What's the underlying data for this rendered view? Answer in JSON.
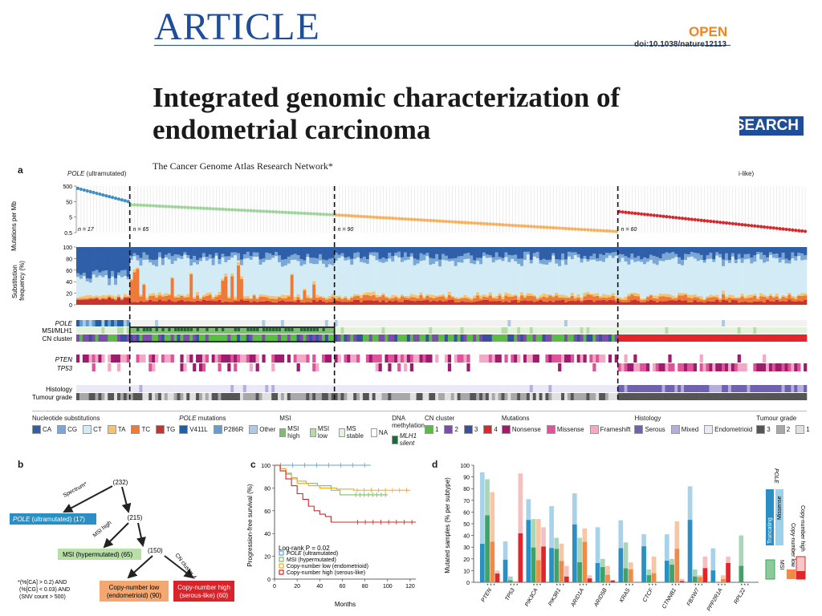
{
  "header": {
    "masthead": "ARTICLE",
    "open_label": "OPEN",
    "doi": "doi:10.1038/nature12113",
    "title_line1": "Integrated genomic characterization of",
    "title_line2": "endometrial carcinoma",
    "badge": "RESEARCH",
    "authors": "The Cancer Genome Atlas Research Network*"
  },
  "panel_a": {
    "letter": "a",
    "pole_label_italic": "POLE",
    "pole_label_rest": " (ultramutated)",
    "right_clip": "i-like)",
    "ylabel_mut": "Mutations per Mb",
    "mut_ticks": [
      "500",
      "50",
      "5",
      "0.5"
    ],
    "ylabel_sub": "Substitution frequency (%)",
    "sub_ticks": [
      "100",
      "80",
      "60",
      "40",
      "20",
      "0"
    ],
    "n_labels": [
      "n = 17",
      "n = 65",
      "n = 90",
      "n = 60"
    ],
    "track_labels": {
      "pole": "POLE",
      "msi": "MSI/MLH1",
      "cn": "CN cluster",
      "pten": "PTEN",
      "tp53": "TP53",
      "histology": "Histology",
      "grade": "Tumour grade"
    },
    "legend": [
      {
        "title": "Nucleotide substitutions",
        "items": [
          {
            "label": "CA",
            "color": "#2e5fa8"
          },
          {
            "label": "CG",
            "color": "#7aa7d6"
          },
          {
            "label": "CT",
            "color": "#d3ebf5"
          },
          {
            "label": "TA",
            "color": "#f6c36a"
          },
          {
            "label": "TC",
            "color": "#ee7a3a"
          },
          {
            "label": "TG",
            "color": "#c9332b"
          }
        ]
      },
      {
        "title_italic": "POLE",
        "title": " mutations",
        "items": [
          {
            "label": "V411L",
            "color": "#1f5fa6"
          },
          {
            "label": "P286R",
            "color": "#5f9fd6"
          },
          {
            "label": "Other",
            "color": "#a9cbe8"
          }
        ]
      },
      {
        "title": "MSI",
        "items": [
          {
            "label": "MSI high",
            "color": "#7bbf6a"
          },
          {
            "label": "MSI low",
            "color": "#b6dca6"
          },
          {
            "label": "MS stable",
            "color": "#e4f2dc"
          },
          {
            "label": "NA",
            "color": "#ffffff"
          }
        ]
      },
      {
        "title": "DNA methylation",
        "items": [
          {
            "label": "MLH1 silent",
            "color": "#1d6b3a"
          }
        ]
      },
      {
        "title": "CN cluster",
        "items": [
          {
            "label": "1",
            "color": "#5cba47"
          },
          {
            "label": "2",
            "color": "#7b4fa8"
          },
          {
            "label": "3",
            "color": "#3b4fa0"
          },
          {
            "label": "4",
            "color": "#e0262b"
          }
        ]
      },
      {
        "title": "Mutations",
        "items": [
          {
            "label": "Nonsense",
            "color": "#9e1b6e"
          },
          {
            "label": "Missense",
            "color": "#e0529a"
          },
          {
            "label": "Frameshift",
            "color": "#f3a8c6"
          }
        ]
      },
      {
        "title": "Histology",
        "items": [
          {
            "label": "Serous",
            "color": "#7062b0"
          },
          {
            "label": "Mixed",
            "color": "#b3aedb"
          },
          {
            "label": "Endometrioid",
            "color": "#ebe9f5"
          }
        ]
      },
      {
        "title": "Tumour grade",
        "items": [
          {
            "label": "3",
            "color": "#555555"
          },
          {
            "label": "2",
            "color": "#a8a8a8"
          },
          {
            "label": "1",
            "color": "#e0e0e0"
          }
        ]
      }
    ]
  },
  "panel_b": {
    "letter": "b",
    "root": "(232)",
    "spectrum": "Spectrum*",
    "n215": "(215)",
    "pole_box": "(ultramutated) (17)",
    "pole_box_italic": "POLE",
    "msi_high": "MSI high",
    "n150": "(150)",
    "cn_cluster": "CN cluster 4",
    "msi_box": "MSI (hypermutated) (65)",
    "cn_low_1": "Copy-number low",
    "cn_low_2": "(endometrioid) (90)",
    "cn_high_1": "Copy-number high",
    "cn_high_2": "(serous-like) (60)",
    "footnote_1": "*(%[CA] > 0.2) AND",
    "footnote_2": "(%[CG] < 0.03) AND",
    "footnote_3": "(SNV count > 500)"
  },
  "panel_c": {
    "letter": "c",
    "ylabel": "Progression-free survival (%)",
    "xlabel": "Months",
    "logrank": "Log-rank P = 0.02",
    "y_ticks": [
      "100",
      "80",
      "60",
      "40",
      "20",
      "0"
    ],
    "x_ticks": [
      "0",
      "20",
      "40",
      "60",
      "80",
      "100",
      "120"
    ],
    "legend": [
      {
        "label_italic": "POLE",
        "label": " (ultramutated)",
        "color": "#5ba4d4"
      },
      {
        "label": "MSI (hypermutated)",
        "color": "#7bbf6a"
      },
      {
        "label": "Copy-number low (endometrioid)",
        "color": "#f5a623"
      },
      {
        "label": "Copy-number high (serous-like)",
        "color": "#d0252b"
      }
    ]
  },
  "panel_d": {
    "letter": "d",
    "ylabel": "Mutated samples (% per subtype)",
    "y_ticks": [
      "100",
      "90",
      "80",
      "70",
      "60",
      "50",
      "40",
      "30",
      "20",
      "10",
      "0"
    ],
    "genes": [
      "PTEN",
      "TP53",
      "PIK3CA",
      "PIK3R1",
      "ARID1A",
      "ARID5B",
      "KRAS",
      "CTCF",
      "CTNNB1",
      "FBXW7",
      "PPP2R1A",
      "RPL22"
    ],
    "legend": {
      "pole": "POLE",
      "truncating": "Truncating",
      "missense": "Missense",
      "msi": "MSI",
      "cn_low": "Copy-number low",
      "cn_high": "Copy-number high"
    }
  },
  "chart_data": [
    {
      "type": "line",
      "panel": "c",
      "xlabel": "Months",
      "ylabel": "Progression-free survival (%)",
      "xlim": [
        0,
        125
      ],
      "ylim": [
        0,
        100
      ],
      "annotation": "Log-rank P = 0.02",
      "series": [
        {
          "name": "POLE (ultramutated)",
          "color": "#5ba4d4",
          "points": [
            [
              0,
              100
            ],
            [
              85,
              100
            ]
          ]
        },
        {
          "name": "MSI (hypermutated)",
          "color": "#7bbf6a",
          "points": [
            [
              0,
              100
            ],
            [
              5,
              97
            ],
            [
              10,
              93
            ],
            [
              15,
              89
            ],
            [
              20,
              86
            ],
            [
              28,
              84
            ],
            [
              38,
              82
            ],
            [
              50,
              78
            ],
            [
              58,
              74
            ],
            [
              70,
              74
            ],
            [
              100,
              74
            ]
          ]
        },
        {
          "name": "Copy-number low (endometrioid)",
          "color": "#f5a623",
          "points": [
            [
              0,
              100
            ],
            [
              5,
              97
            ],
            [
              10,
              92
            ],
            [
              15,
              88
            ],
            [
              20,
              84
            ],
            [
              30,
              82
            ],
            [
              40,
              80
            ],
            [
              55,
              79
            ],
            [
              70,
              78
            ],
            [
              120,
              78
            ]
          ]
        },
        {
          "name": "Copy-number high (serous-like)",
          "color": "#d0252b",
          "points": [
            [
              0,
              100
            ],
            [
              5,
              95
            ],
            [
              10,
              88
            ],
            [
              15,
              82
            ],
            [
              20,
              75
            ],
            [
              25,
              70
            ],
            [
              30,
              64
            ],
            [
              35,
              60
            ],
            [
              40,
              57
            ],
            [
              45,
              55
            ],
            [
              50,
              50
            ],
            [
              70,
              50
            ],
            [
              125,
              50
            ]
          ]
        }
      ]
    },
    {
      "type": "bar",
      "panel": "d",
      "ylabel": "Mutated samples (% per subtype)",
      "ylim": [
        0,
        100
      ],
      "categories": [
        "PTEN",
        "TP53",
        "PIK3CA",
        "PIK3R1",
        "ARID1A",
        "ARID5B",
        "KRAS",
        "CTCF",
        "CTNNB1",
        "FBXW7",
        "PPP2R1A",
        "RPL22"
      ],
      "series": [
        {
          "name": "POLE",
          "color": "#2a8fc5",
          "values": [
            94,
            35,
            71,
            65,
            76,
            47,
            53,
            41,
            41,
            82,
            29,
            0
          ]
        },
        {
          "name": "MSI",
          "color": "#3fa266",
          "values": [
            88,
            5,
            54,
            38,
            38,
            20,
            34,
            11,
            20,
            11,
            0,
            40
          ]
        },
        {
          "name": "Copy-number low",
          "color": "#f08a4b",
          "values": [
            77,
            1,
            54,
            33,
            46,
            14,
            17,
            22,
            52,
            6,
            6,
            0
          ]
        },
        {
          "name": "Copy-number high",
          "color": "#e0262b",
          "values": [
            10,
            93,
            47,
            14,
            6,
            2,
            0,
            0,
            3,
            22,
            22,
            0
          ]
        }
      ]
    }
  ]
}
